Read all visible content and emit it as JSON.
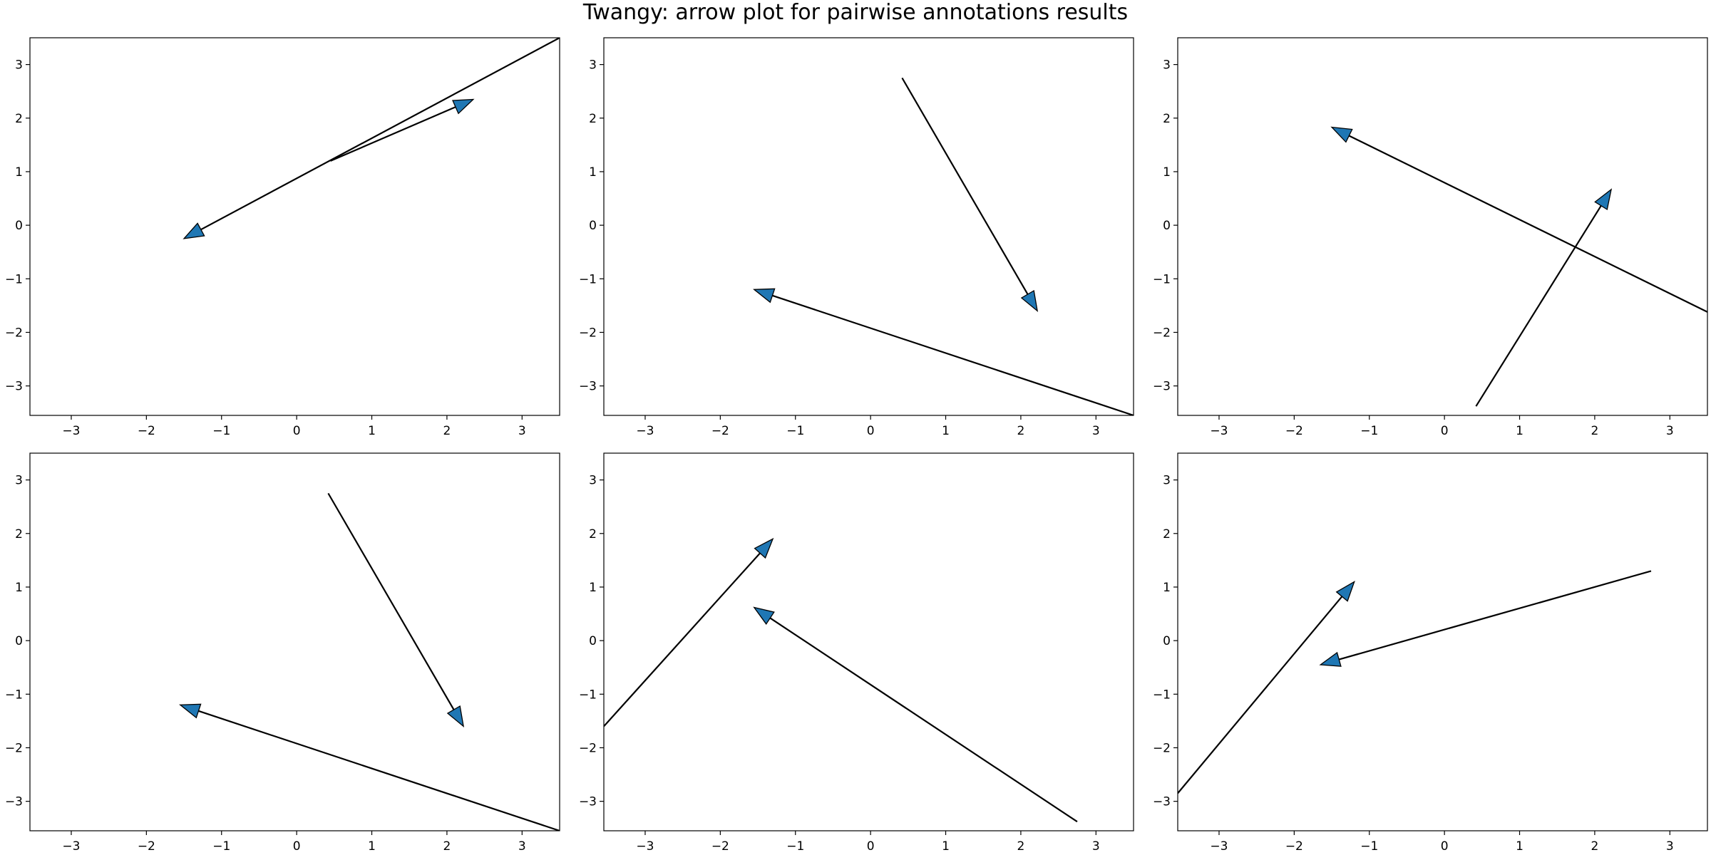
{
  "chart_data": {
    "title": "Twangy: arrow plot for pairwise annotations results",
    "type": "arrow-plot",
    "arrow_color": "#1f77b4",
    "line_color": "#000000",
    "xlim": [
      -3.55,
      3.5
    ],
    "ylim": [
      -3.55,
      3.5
    ],
    "xticks": [
      -3,
      -2,
      -1,
      0,
      1,
      2,
      3
    ],
    "yticks": [
      -3,
      -2,
      -1,
      0,
      1,
      2,
      3
    ],
    "tick_labels": [
      "−3",
      "−2",
      "−1",
      "0",
      "1",
      "2",
      "3"
    ],
    "layout": {
      "rows": 2,
      "cols": 3
    },
    "subplots": [
      {
        "arrows": [
          {
            "x": 3.5,
            "y": 3.5,
            "dx": -5.0,
            "dy": -3.75
          },
          {
            "x": 0.45,
            "y": 1.2,
            "dx": 1.9,
            "dy": 1.15
          }
        ]
      },
      {
        "arrows": [
          {
            "x": 0.42,
            "y": 2.75,
            "dx": 1.8,
            "dy": -4.35
          },
          {
            "x": 3.5,
            "y": -3.55,
            "dx": -5.05,
            "dy": 2.35
          }
        ]
      },
      {
        "arrows": [
          {
            "x": 3.5,
            "y": -1.62,
            "dx": -5.0,
            "dy": 3.45
          },
          {
            "x": 0.42,
            "y": -3.38,
            "dx": 1.8,
            "dy": 4.05
          }
        ]
      },
      {
        "arrows": [
          {
            "x": 0.42,
            "y": 2.75,
            "dx": 1.8,
            "dy": -4.35
          },
          {
            "x": 3.5,
            "y": -3.55,
            "dx": -5.05,
            "dy": 2.35
          }
        ]
      },
      {
        "arrows": [
          {
            "x": -3.55,
            "y": -1.6,
            "dx": 2.25,
            "dy": 3.5
          },
          {
            "x": 2.75,
            "y": -3.38,
            "dx": -4.3,
            "dy": 4.0
          }
        ]
      },
      {
        "arrows": [
          {
            "x": -3.55,
            "y": -2.85,
            "dx": 2.35,
            "dy": 3.95
          },
          {
            "x": 2.75,
            "y": 1.3,
            "dx": -4.4,
            "dy": -1.75
          }
        ]
      }
    ]
  }
}
